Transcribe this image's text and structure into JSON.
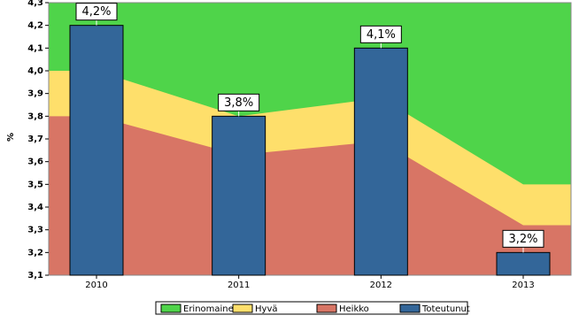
{
  "chart_data": {
    "type": "bar",
    "y_label": "%",
    "categories": [
      "2010",
      "2011",
      "2012",
      "2013"
    ],
    "series": [
      {
        "name": "Toteutunut",
        "color": "#336699",
        "values": [
          4.2,
          3.8,
          4.1,
          3.2
        ],
        "value_labels": [
          "4,2%",
          "3,8%",
          "4,1%",
          "3,2%"
        ]
      }
    ],
    "zones": [
      {
        "name": "Erinomainen",
        "color": "#4fd44a"
      },
      {
        "name": "Hyvä",
        "color": "#fedf6b",
        "values": [
          4.0,
          3.8,
          3.88,
          3.5
        ]
      },
      {
        "name": "Heikko",
        "color": "#d87565",
        "values": [
          3.8,
          3.63,
          3.69,
          3.32
        ]
      }
    ],
    "ylim": [
      3.1,
      4.3
    ],
    "yticks": [
      {
        "value": 3.1,
        "label": "3,1"
      },
      {
        "value": 3.2,
        "label": "3,2"
      },
      {
        "value": 3.3,
        "label": "3,3"
      },
      {
        "value": 3.4,
        "label": "3,4"
      },
      {
        "value": 3.5,
        "label": "3,5"
      },
      {
        "value": 3.6,
        "label": "3,6"
      },
      {
        "value": 3.7,
        "label": "3,7"
      },
      {
        "value": 3.8,
        "label": "3,8"
      },
      {
        "value": 3.9,
        "label": "3,9"
      },
      {
        "value": 4.0,
        "label": "4,0"
      },
      {
        "value": 4.1,
        "label": "4,1"
      },
      {
        "value": 4.2,
        "label": "4,2"
      },
      {
        "value": 4.3,
        "label": "4,3"
      }
    ],
    "legend": "bottom"
  }
}
